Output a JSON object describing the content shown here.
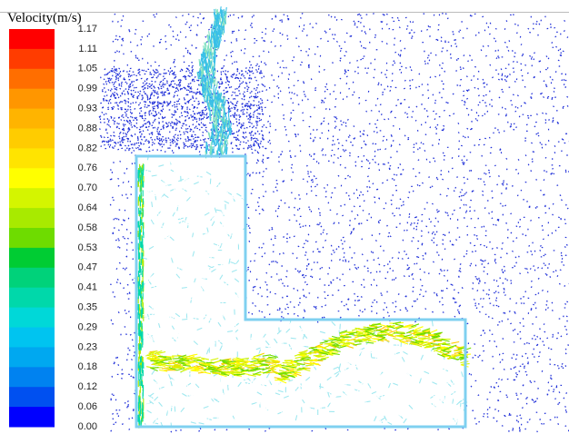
{
  "legend": {
    "title": "Velocity(m/s)",
    "labels": [
      "1.17",
      "1.11",
      "1.05",
      "0.99",
      "0.93",
      "0.88",
      "0.82",
      "0.76",
      "0.70",
      "0.64",
      "0.58",
      "0.53",
      "0.47",
      "0.41",
      "0.35",
      "0.29",
      "0.23",
      "0.18",
      "0.12",
      "0.06",
      "0.00"
    ],
    "colors": [
      "#ff0000",
      "#ff3c00",
      "#ff6e00",
      "#ff9600",
      "#ffb400",
      "#ffcc00",
      "#ffe400",
      "#ffff00",
      "#d4f500",
      "#a8ea00",
      "#6edc00",
      "#00cc33",
      "#00d27a",
      "#00d8aa",
      "#00d8d8",
      "#00c4f0",
      "#00a8f0",
      "#0082f0",
      "#0050f0",
      "#0000ff"
    ]
  }
}
